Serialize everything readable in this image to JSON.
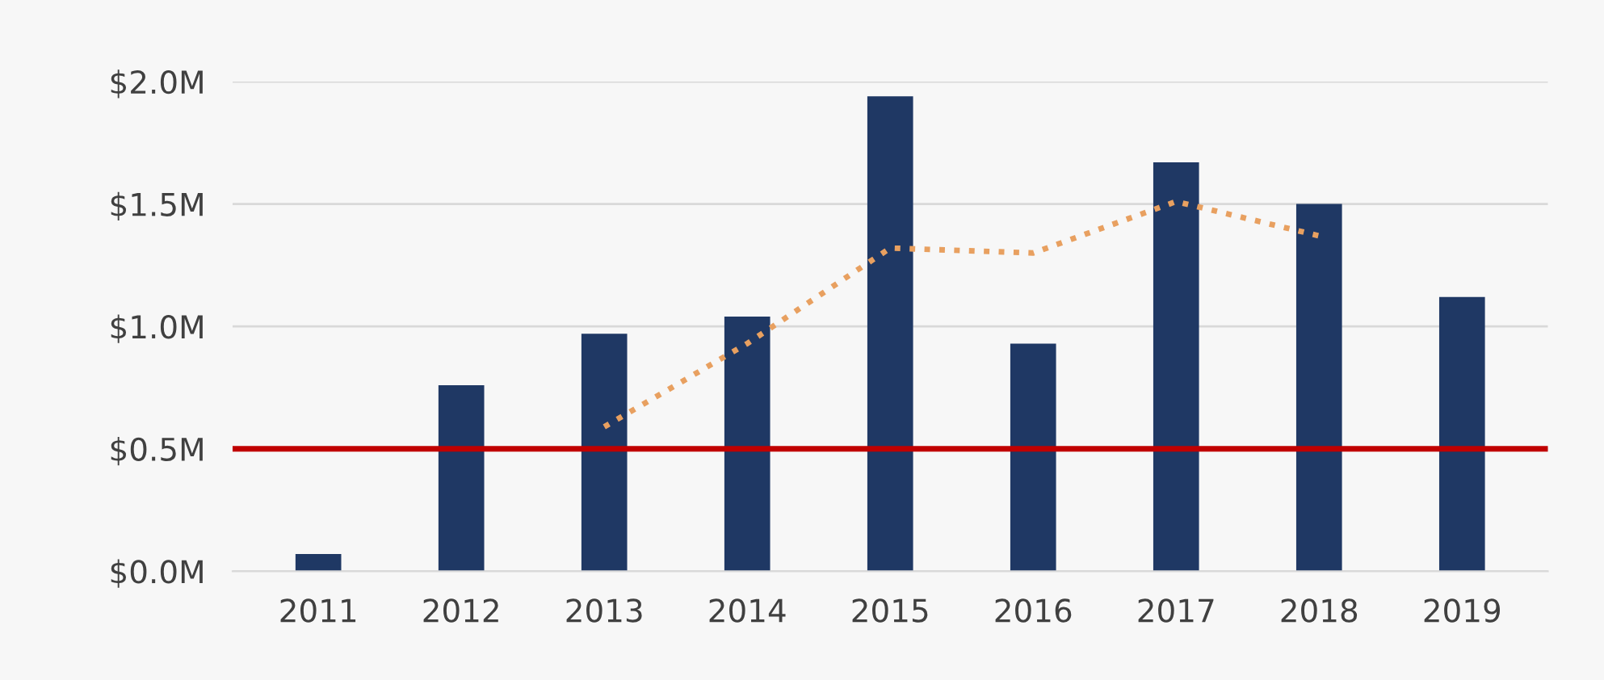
{
  "chart_data": {
    "type": "bar",
    "categories": [
      "2011",
      "2012",
      "2013",
      "2014",
      "2015",
      "2016",
      "2017",
      "2018",
      "2019"
    ],
    "series": [
      {
        "color": "#1f3864",
        "values": [
          0.07,
          0.76,
          0.97,
          1.04,
          1.94,
          0.93,
          1.67,
          1.5,
          1.12
        ]
      },
      {
        "type": "line",
        "color": "#e8a060",
        "line_style": "dotted",
        "values": [
          null,
          null,
          0.59,
          0.93,
          1.32,
          1.3,
          1.51,
          1.37,
          null
        ]
      }
    ],
    "ylim": [
      0,
      2.0
    ],
    "yticks": [
      {
        "value": 0,
        "label": "$0.0M"
      },
      {
        "value": 0.5,
        "label": "$0.5M"
      },
      {
        "value": 1.0,
        "label": "$1.0M"
      },
      {
        "value": 1.5,
        "label": "$1.5M"
      },
      {
        "value": 2.0,
        "label": "$2.0M"
      }
    ],
    "ref_lines": [
      {
        "axis": "y",
        "value": 0.5,
        "label": null,
        "color": "#c00000"
      }
    ],
    "grid": "y"
  }
}
